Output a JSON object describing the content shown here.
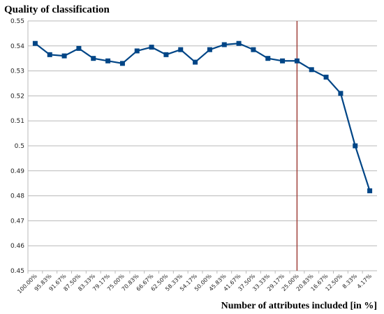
{
  "chart_data": {
    "type": "line",
    "ylabel": "Quality of classification",
    "xlabel": "Number of attributes included [in %]",
    "ylim": [
      0.45,
      0.55
    ],
    "yticks": [
      "0.45",
      "0.46",
      "0.47",
      "0.48",
      "0.49",
      "0.5",
      "0.51",
      "0.52",
      "0.53",
      "0.54",
      "0.55"
    ],
    "grid": true,
    "legend": "none",
    "categories": [
      "100.00%",
      "95.83%",
      "91.67%",
      "87.50%",
      "83.33%",
      "79.17%",
      "75.00%",
      "70.83%",
      "66.67%",
      "62.50%",
      "58.33%",
      "54.17%",
      "50.00%",
      "45.83%",
      "41.67%",
      "37.50%",
      "33.33%",
      "29.17%",
      "25.00%",
      "20.83%",
      "16.67%",
      "12.50%",
      "8.33%",
      "4.17%"
    ],
    "series": [
      {
        "values": [
          0.541,
          0.5365,
          0.536,
          0.539,
          0.535,
          0.534,
          0.533,
          0.538,
          0.5395,
          0.5365,
          0.5385,
          0.5335,
          0.5385,
          0.5405,
          0.541,
          0.5385,
          0.535,
          0.534,
          0.534,
          0.5305,
          0.5275,
          0.521,
          0.5,
          0.482
        ]
      }
    ],
    "vertical_marker_category": "25.00%",
    "colors": {
      "series": "#004586",
      "marker_line": "#a0403a",
      "grid": "#b8b8b8"
    }
  }
}
